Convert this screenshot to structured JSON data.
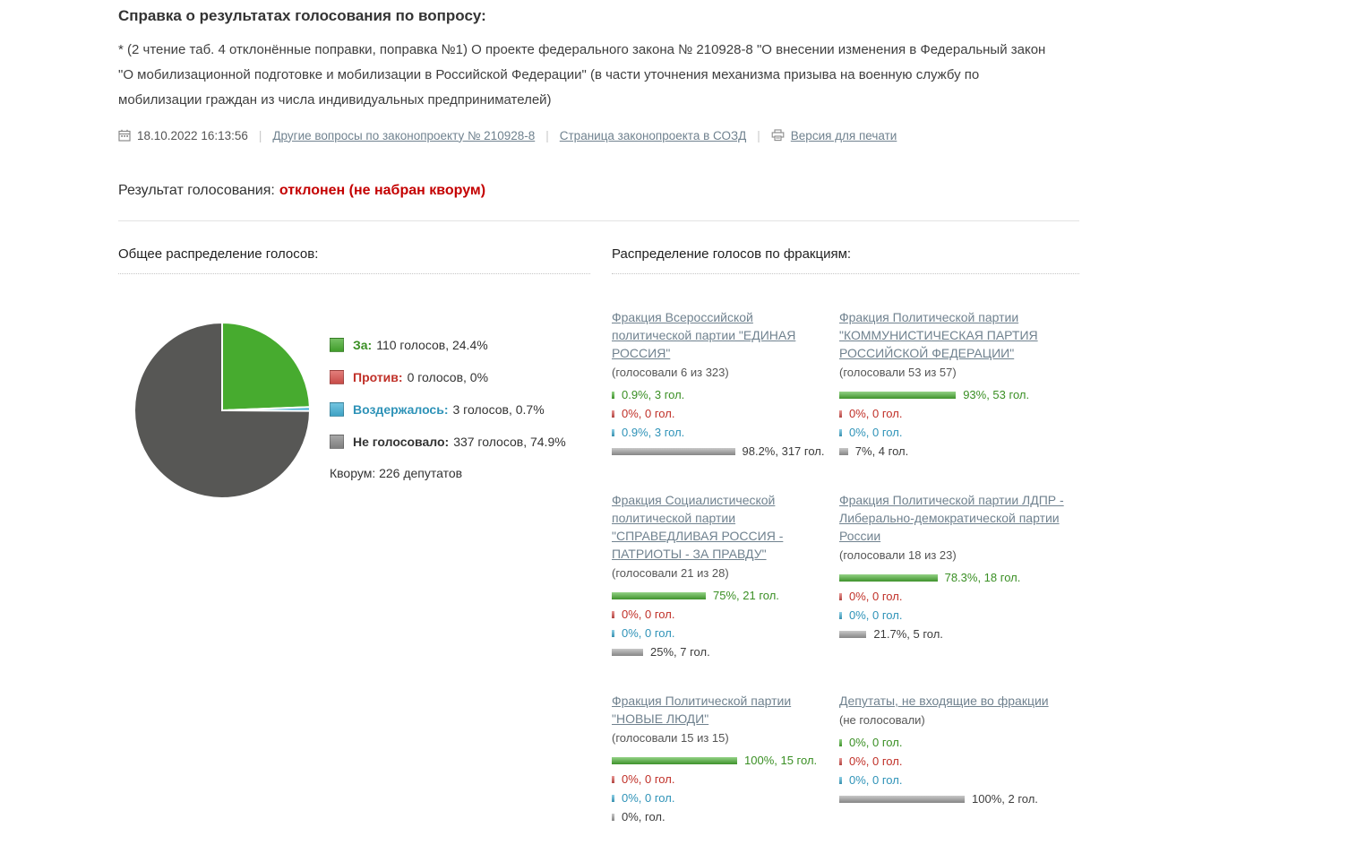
{
  "page": {
    "title": "Справка о результатах голосования по вопросу:",
    "question": "* (2 чтение таб. 4 отклонённые поправки, поправка №1) О проекте федерального закона № 210928-8 \"О внесении изменения в Федеральный закон \"О мобилизационной подготовке и мобилизации в Российской Федерации\" (в части уточнения механизма призыва на военную службу по мобилизации граждан из числа индивидуальных предпринимателей)",
    "datetime": "18.10.2022 16:13:56",
    "links": {
      "other_questions": "Другие вопросы по законопроекту № 210928-8",
      "sozd_page": "Страница законопроекта в СОЗД",
      "print_version": "Версия для печати"
    },
    "result_label": "Результат голосования:",
    "result_value": "отклонен (не набран кворум)"
  },
  "overall": {
    "heading": "Общее распределение голосов:",
    "legend": [
      {
        "key": "for",
        "label": "За:",
        "value": "110 голосов, 24.4%",
        "color": "#47ab2f",
        "label_color": "#3a8f24"
      },
      {
        "key": "against",
        "label": "Против:",
        "value": "0 голосов, 0%",
        "color": "#d9534f",
        "label_color": "#c03028"
      },
      {
        "key": "abstain",
        "label": "Воздержалось:",
        "value": "3 голосов, 0.7%",
        "color": "#44b0d5",
        "label_color": "#2f93b8"
      },
      {
        "key": "novote",
        "label": "Не голосовало:",
        "value": "337 голосов, 74.9%",
        "color": "#8a8a8a",
        "label_color": "#333333"
      }
    ],
    "quorum": "Кворум: 226 депутатов"
  },
  "chart_data": {
    "type": "pie",
    "title": "Общее распределение голосов",
    "start_angle_deg": -90,
    "quorum": 226,
    "slices": [
      {
        "label": "За",
        "votes": 110,
        "percent": 24.4,
        "color": "#47ab2f"
      },
      {
        "label": "Против",
        "votes": 0,
        "percent": 0,
        "color": "#d9534f"
      },
      {
        "label": "Воздержалось",
        "votes": 3,
        "percent": 0.7,
        "color": "#44b0d5"
      },
      {
        "label": "Не голосовало",
        "votes": 337,
        "percent": 74.9,
        "color": "#575755"
      }
    ]
  },
  "vote_colors": {
    "for": {
      "bar": "#4cb335",
      "text": "#3a8f24"
    },
    "against": {
      "bar": "#d9534f",
      "text": "#c03028"
    },
    "abstain": {
      "bar": "#44b0d5",
      "text": "#2f93b8"
    },
    "novote": {
      "bar": "#a3a3a3",
      "text": "#3c3c3c"
    }
  },
  "fractions": {
    "heading": "Распределение голосов по фракциям:",
    "items": [
      {
        "name": "Фракция Всероссийской политической партии \"ЕДИНАЯ РОССИЯ\"",
        "turnout": "(голосовали 6 из 323)",
        "rows": [
          {
            "type": "for",
            "percent": 0.9,
            "text": "0.9%, 3 гол."
          },
          {
            "type": "against",
            "percent": 0,
            "text": "0%, 0 гол."
          },
          {
            "type": "abstain",
            "percent": 0.9,
            "text": "0.9%, 3 гол."
          },
          {
            "type": "novote",
            "percent": 98.2,
            "text": "98.2%, 317 гол."
          }
        ]
      },
      {
        "name": "Фракция Политической партии \"КОММУНИСТИЧЕСКАЯ ПАРТИЯ РОССИЙСКОЙ ФЕДЕРАЦИИ\"",
        "turnout": "(голосовали 53 из 57)",
        "rows": [
          {
            "type": "for",
            "percent": 93,
            "text": "93%, 53 гол."
          },
          {
            "type": "against",
            "percent": 0,
            "text": "0%, 0 гол."
          },
          {
            "type": "abstain",
            "percent": 0,
            "text": "0%, 0 гол."
          },
          {
            "type": "novote",
            "percent": 7,
            "text": "7%, 4 гол."
          }
        ]
      },
      {
        "name": "Фракция Социалистической политической партии \"СПРАВЕДЛИВАЯ РОССИЯ - ПАТРИОТЫ - ЗА ПРАВДУ\"",
        "turnout": "(голосовали 21 из 28)",
        "rows": [
          {
            "type": "for",
            "percent": 75,
            "text": "75%, 21 гол."
          },
          {
            "type": "against",
            "percent": 0,
            "text": "0%, 0 гол."
          },
          {
            "type": "abstain",
            "percent": 0,
            "text": "0%, 0 гол."
          },
          {
            "type": "novote",
            "percent": 25,
            "text": "25%, 7 гол."
          }
        ]
      },
      {
        "name": "Фракция Политической партии ЛДПР - Либерально-демократической партии России",
        "turnout": "(голосовали 18 из 23)",
        "rows": [
          {
            "type": "for",
            "percent": 78.3,
            "text": "78.3%, 18 гол."
          },
          {
            "type": "against",
            "percent": 0,
            "text": "0%, 0 гол."
          },
          {
            "type": "abstain",
            "percent": 0,
            "text": "0%, 0 гол."
          },
          {
            "type": "novote",
            "percent": 21.7,
            "text": "21.7%, 5 гол."
          }
        ]
      },
      {
        "name": "Фракция Политической партии \"НОВЫЕ ЛЮДИ\"",
        "turnout": "(голосовали 15 из 15)",
        "rows": [
          {
            "type": "for",
            "percent": 100,
            "text": "100%, 15 гол."
          },
          {
            "type": "against",
            "percent": 0,
            "text": "0%, 0 гол."
          },
          {
            "type": "abstain",
            "percent": 0,
            "text": "0%, 0 гол."
          },
          {
            "type": "novote",
            "percent": 0,
            "text": "0%, гол."
          }
        ]
      },
      {
        "name": "Депутаты, не входящие во фракции",
        "turnout": "(не голосовали)",
        "rows": [
          {
            "type": "for",
            "percent": 0,
            "text": "0%, 0 гол."
          },
          {
            "type": "against",
            "percent": 0,
            "text": "0%, 0 гол."
          },
          {
            "type": "abstain",
            "percent": 0,
            "text": "0%, 0 гол."
          },
          {
            "type": "novote",
            "percent": 100,
            "text": "100%, 2 гол."
          }
        ]
      }
    ]
  }
}
